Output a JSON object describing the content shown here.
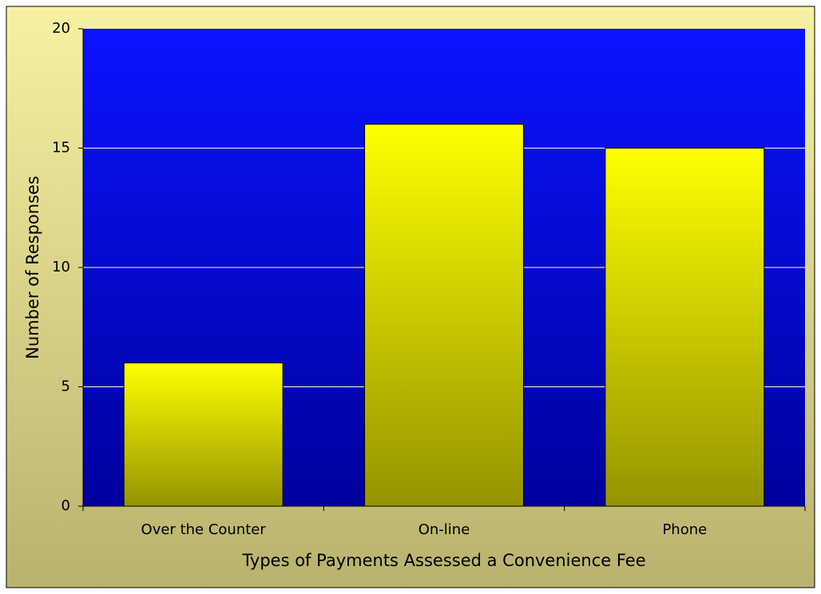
{
  "chart_data": {
    "type": "bar",
    "x_label": "Types of Payments Assessed a Convenience Fee",
    "y_label": "Number of Responses",
    "categories": [
      "Over the Counter",
      "On-line",
      "Phone"
    ],
    "values": [
      6,
      16,
      15
    ],
    "color": "#ffff00",
    "ylim": [
      0,
      20
    ],
    "yticks": [
      0,
      5,
      10,
      15,
      20
    ],
    "grid": true
  }
}
